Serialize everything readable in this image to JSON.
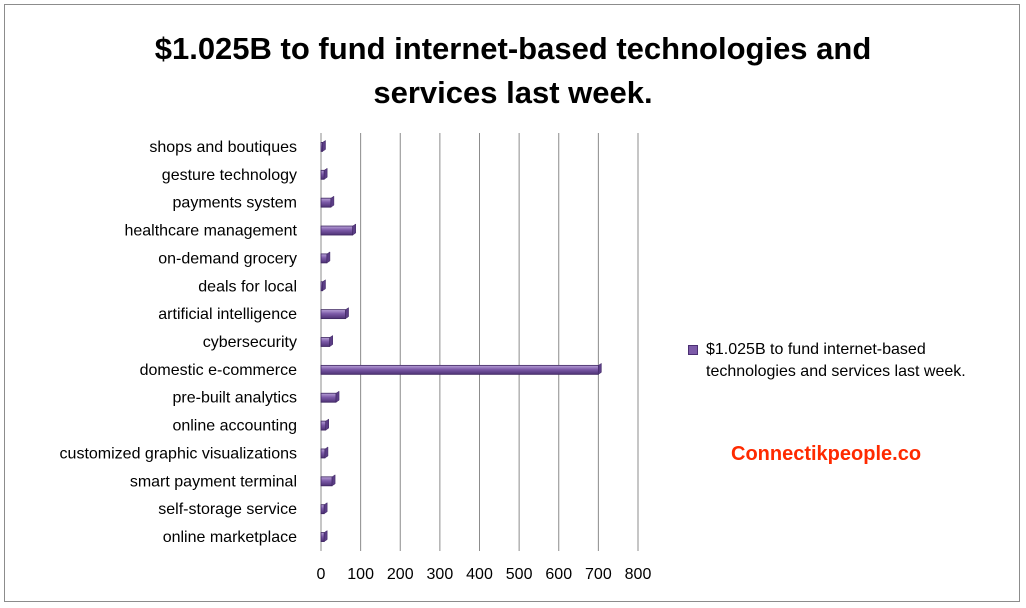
{
  "chart_data": {
    "type": "bar",
    "orientation": "horizontal",
    "title": "$1.025B to fund internet-based technologies and services last week.",
    "title_lines": [
      "$1.025B to fund internet-based technologies and",
      "services last week."
    ],
    "categories": [
      "shops and boutiques",
      "gesture technology",
      "payments system",
      "healthcare management",
      "on-demand grocery",
      "deals for local",
      "artificial intelligence",
      "cybersecurity",
      "domestic e-commerce",
      "pre-built analytics",
      "online accounting",
      "customized graphic visualizations",
      "smart payment terminal",
      "self-storage service",
      "online marketplace"
    ],
    "series": [
      {
        "name": "$1.025B to fund internet-based technologies and services last week.",
        "values": [
          1,
          8,
          25,
          80,
          15,
          1,
          62,
          22,
          700,
          38,
          12,
          10,
          28,
          8,
          8
        ]
      }
    ],
    "xlim": [
      0,
      800
    ],
    "xticks": [
      0,
      100,
      200,
      300,
      400,
      500,
      600,
      700,
      800
    ],
    "grid": "vertical",
    "legend_position": "right",
    "bar_color": "#7c5aa8"
  },
  "legend": {
    "label_line1": "$1.025B to fund internet-based",
    "label_line2": "technologies and services last week."
  },
  "watermark": "Connectikpeople.co"
}
